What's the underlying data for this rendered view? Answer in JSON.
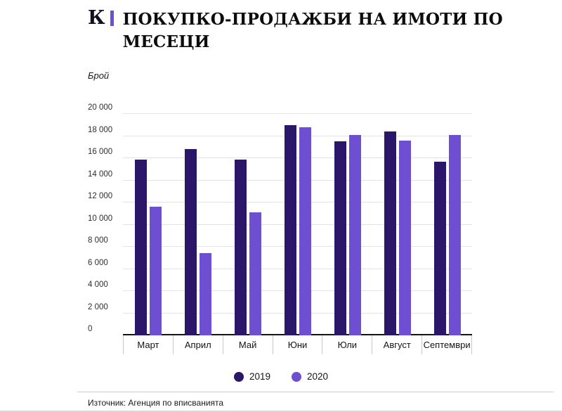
{
  "header": {
    "logo_k": "К",
    "title_line1": "ПОКУПКО-ПРОДАЖБИ НА ИМОТИ ПО",
    "title_line2": "МЕСЕЦИ"
  },
  "colors": {
    "accent_purple": "#6e4fd2",
    "dark_indigo": "#2a1769"
  },
  "chart_data": {
    "type": "bar",
    "title": "Покупко-продажби на имоти по месеци",
    "ylabel": "Брой",
    "categories": [
      "Март",
      "Април",
      "Май",
      "Юни",
      "Юли",
      "Август",
      "Септември"
    ],
    "series": [
      {
        "name": "2019",
        "color": "#2a1769",
        "values": [
          15900,
          16800,
          15900,
          19000,
          17500,
          18400,
          15700
        ]
      },
      {
        "name": "2020",
        "color": "#6e4fd2",
        "values": [
          11600,
          7400,
          11100,
          18800,
          18100,
          17600,
          18100
        ]
      }
    ],
    "ylim": [
      0,
      20000
    ],
    "ytick_step": 2000,
    "ytick_labels": [
      "0",
      "2 000",
      "4 000",
      "6 000",
      "8 000",
      "10 000",
      "12 000",
      "14 000",
      "16 000",
      "18 000",
      "20 000"
    ],
    "grid": true,
    "legend_position": "bottom"
  },
  "footer": {
    "source": "Източник: Агенция по вписванията"
  }
}
